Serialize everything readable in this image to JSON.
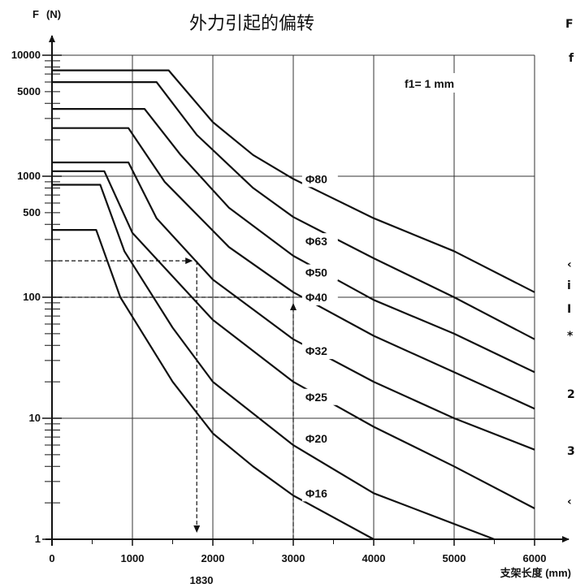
{
  "chart_data": {
    "type": "line",
    "title": "外力引起的偏转",
    "ylabel": "F",
    "yunit": "(N)",
    "xlabel": "支架长度 (mm)",
    "yscale": "log",
    "xlim": [
      0,
      6000
    ],
    "ylim": [
      1,
      10000
    ],
    "x_ticks": [
      0,
      1000,
      2000,
      3000,
      4000,
      5000,
      6000
    ],
    "y_tick_labels": [
      {
        "value": 10000,
        "label": "10000"
      },
      {
        "value": 5000,
        "label": "5000"
      },
      {
        "value": 1000,
        "label": "1000"
      },
      {
        "value": 500,
        "label": "500"
      },
      {
        "value": 100,
        "label": "100"
      },
      {
        "value": 10,
        "label": "10"
      },
      {
        "value": 1,
        "label": "1"
      }
    ],
    "grid": true,
    "annotation": "f1= 1 mm",
    "series": [
      {
        "name": "Φ80",
        "label_pos": [
          3150,
          950
        ],
        "x": [
          0,
          1450,
          2000,
          2500,
          3000,
          4000,
          5000,
          6000
        ],
        "y": [
          7500,
          7500,
          2800,
          1500,
          950,
          450,
          240,
          110
        ]
      },
      {
        "name": "Φ63",
        "label_pos": [
          3150,
          290
        ],
        "x": [
          0,
          1300,
          1800,
          2500,
          3000,
          4000,
          5000,
          6000
        ],
        "y": [
          6000,
          6000,
          2200,
          800,
          460,
          210,
          100,
          45
        ]
      },
      {
        "name": "Φ50",
        "label_pos": [
          3150,
          160
        ],
        "x": [
          0,
          1150,
          1600,
          2200,
          3000,
          4000,
          5000,
          6000
        ],
        "y": [
          3600,
          3600,
          1500,
          550,
          220,
          95,
          50,
          24
        ]
      },
      {
        "name": "Φ40",
        "label_pos": [
          3150,
          100
        ],
        "x": [
          0,
          950,
          1400,
          2200,
          3000,
          4000,
          5000,
          6000
        ],
        "y": [
          2500,
          2500,
          900,
          260,
          110,
          48,
          24,
          12
        ]
      },
      {
        "name": "Φ32",
        "label_pos": [
          3150,
          36
        ],
        "x": [
          0,
          950,
          1300,
          2000,
          3000,
          4000,
          5000,
          6000
        ],
        "y": [
          1300,
          1300,
          450,
          140,
          45,
          20,
          10,
          5.5
        ]
      },
      {
        "name": "Φ25",
        "label_pos": [
          3150,
          15
        ],
        "x": [
          0,
          650,
          1000,
          2000,
          3000,
          4000,
          5000,
          6000
        ],
        "y": [
          1100,
          1100,
          340,
          65,
          20,
          8.5,
          4,
          1.8
        ]
      },
      {
        "name": "Φ20",
        "label_pos": [
          3150,
          6.8
        ],
        "x": [
          0,
          600,
          900,
          1500,
          2000,
          3000,
          4000,
          5500
        ],
        "y": [
          850,
          850,
          240,
          56,
          20,
          6,
          2.4,
          1
        ]
      },
      {
        "name": "Φ16",
        "label_pos": [
          3150,
          2.4
        ],
        "x": [
          0,
          550,
          850,
          1500,
          2000,
          2500,
          3000,
          4000
        ],
        "y": [
          360,
          360,
          100,
          20,
          7.5,
          4,
          2.3,
          1
        ]
      }
    ],
    "example_lines": [
      {
        "value_label": "1830",
        "y": 200,
        "x": 1800
      },
      {
        "y": 100,
        "x": 3000
      }
    ],
    "margin_fragments": [
      "F",
      "f",
      "‹",
      "i",
      "I",
      "*",
      "2",
      "3",
      "‹"
    ]
  }
}
